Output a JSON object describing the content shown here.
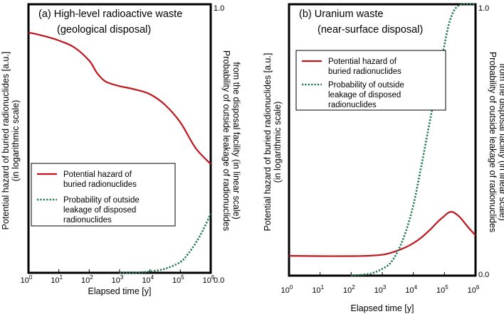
{
  "chart_data": [
    {
      "type": "line",
      "panel": "a",
      "title_line1": "(a) High-level radioactive waste",
      "title_line2": "(geological disposal)",
      "xlabel": "Elapsed time [y]",
      "ylabel_left_line1": "Potential hazard of buried radionuclides [a.u.]",
      "ylabel_left_line2": "(in logarithmic scale)",
      "ylabel_right_line1": "Probability of outside leakage of radionuclides",
      "ylabel_right_line2": "from the disposal facility (in linear scale)",
      "x_scale": "log",
      "x_range_log10": [
        0,
        6
      ],
      "x_ticks": [
        {
          "base": "10",
          "exp": "0"
        },
        {
          "base": "10",
          "exp": "1"
        },
        {
          "base": "10",
          "exp": "2"
        },
        {
          "base": "10",
          "exp": "3"
        },
        {
          "base": "10",
          "exp": "4"
        },
        {
          "base": "10",
          "exp": "5"
        },
        {
          "base": "10",
          "exp": "6"
        }
      ],
      "y_right_ticks": [
        "1.0",
        "0.0"
      ],
      "y_right_range": [
        0,
        1
      ],
      "legend_position": "lower-left",
      "series": [
        {
          "name": "Potential hazard of buried radionuclides",
          "legend_line1": "Potential hazard of",
          "legend_line2": "buried radionuclides",
          "legend_line3": "",
          "color": "#c0141c",
          "style": "solid",
          "axis": "left",
          "unit": "relative (0 = bottom, 1 = top of plot)",
          "x_log10": [
            0,
            0.5,
            1,
            1.5,
            2,
            2.25,
            2.5,
            2.75,
            3,
            3.5,
            4,
            4.5,
            5,
            5.5,
            6
          ],
          "y": [
            0.895,
            0.882,
            0.865,
            0.84,
            0.79,
            0.745,
            0.715,
            0.703,
            0.695,
            0.683,
            0.665,
            0.625,
            0.56,
            0.465,
            0.405
          ]
        },
        {
          "name": "Probability of outside leakage of disposed radionuclides",
          "legend_line1": "Probability of outside",
          "legend_line2": "leakage of disposed",
          "legend_line3": "radionuclides",
          "color": "#1e7b4f",
          "style": "dotted",
          "axis": "right",
          "unit": "probability",
          "x_log10": [
            3.0,
            3.5,
            4.0,
            4.5,
            5.0,
            5.25,
            5.5,
            5.75,
            6.0
          ],
          "y": [
            0.0,
            0.0,
            0.005,
            0.015,
            0.04,
            0.07,
            0.11,
            0.16,
            0.22
          ]
        }
      ]
    },
    {
      "type": "line",
      "panel": "b",
      "title_line1": "(b) Uranium waste",
      "title_line2": "(near-surface disposal)",
      "xlabel": "Elapsed time [y]",
      "ylabel_left_line1": "Potential hazard of buried radionuclides [a.u.]",
      "ylabel_left_line2": "(in logarithmic scale)",
      "ylabel_right_line1": "Probability of outside leakage of radionuclides",
      "ylabel_right_line2": "from the disposal facility (in linear scale)",
      "x_scale": "log",
      "x_range_log10": [
        0,
        6
      ],
      "x_ticks": [
        {
          "base": "10",
          "exp": "0"
        },
        {
          "base": "10",
          "exp": "1"
        },
        {
          "base": "10",
          "exp": "2"
        },
        {
          "base": "10",
          "exp": "3"
        },
        {
          "base": "10",
          "exp": "4"
        },
        {
          "base": "10",
          "exp": "5"
        },
        {
          "base": "10",
          "exp": "6"
        }
      ],
      "y_right_ticks": [
        "1.0",
        "0.0"
      ],
      "y_right_range": [
        0,
        1
      ],
      "legend_position": "upper-left",
      "series": [
        {
          "name": "Potential hazard of buried radionuclides",
          "legend_line1": "Potential hazard of",
          "legend_line2": "buried radionuclides",
          "legend_line3": "",
          "color": "#c0141c",
          "style": "solid",
          "axis": "left",
          "unit": "relative (0 = bottom, 1 = top of plot)",
          "x_log10": [
            0,
            1,
            2,
            2.5,
            3,
            3.3,
            3.6,
            3.9,
            4.2,
            4.5,
            4.8,
            5.0,
            5.1,
            5.2,
            5.3,
            5.5,
            5.75,
            6.0
          ],
          "y": [
            0.073,
            0.072,
            0.072,
            0.073,
            0.077,
            0.085,
            0.097,
            0.113,
            0.135,
            0.165,
            0.2,
            0.22,
            0.23,
            0.235,
            0.233,
            0.215,
            0.18,
            0.148
          ]
        },
        {
          "name": "Probability of outside leakage of disposed radionuclides",
          "legend_line1": "Probability of outside",
          "legend_line2": "leakage of disposed",
          "legend_line3": "radionuclides",
          "color": "#1e7b4f",
          "style": "dotted",
          "axis": "right",
          "unit": "probability",
          "x_log10": [
            2.0,
            2.5,
            2.75,
            3.0,
            3.25,
            3.5,
            3.75,
            4.0,
            4.25,
            4.5,
            4.75,
            5.0,
            5.15,
            5.3,
            5.45,
            5.6,
            6.0
          ],
          "y": [
            0.0,
            0.005,
            0.012,
            0.025,
            0.045,
            0.09,
            0.16,
            0.26,
            0.4,
            0.55,
            0.7,
            0.85,
            0.93,
            0.975,
            0.995,
            1.0,
            1.0
          ]
        }
      ]
    }
  ]
}
